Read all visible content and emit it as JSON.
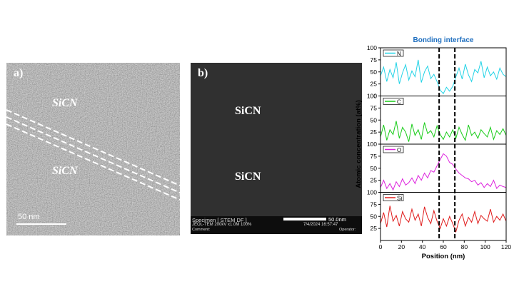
{
  "panel_a": {
    "label": "a)",
    "upper_layer": "SiCN",
    "lower_layer": "SiCN",
    "scale_bar": "50 nm"
  },
  "panel_b": {
    "label": "b)",
    "upper_layer": "SiCN",
    "lower_layer": "SiCN",
    "scale_bar": "50.0nm",
    "footer": {
      "line1_left": "Specimen [ STEM DF ]",
      "line2_left": "JEOL-TEM 200kV x1.0M 100%",
      "line2_right": "7/4/2024 16:57:47",
      "line3_left": "Comment:",
      "line3_right": "Operator:"
    }
  },
  "chart_data": {
    "type": "line",
    "title": "Bonding interface",
    "xlabel": "Position (nm)",
    "ylabel": "Atomic concentration (at%)",
    "xlim": [
      0,
      120
    ],
    "ylim": [
      0,
      100
    ],
    "xticks": [
      "0",
      "20",
      "40",
      "60",
      "80",
      "100",
      "120"
    ],
    "yticks": [
      "0",
      "25",
      "50",
      "75",
      "100"
    ],
    "interface_lines_x": [
      56,
      71
    ],
    "grid": false,
    "colors": {
      "N": "#22d3e6",
      "C": "#19cc19",
      "O": "#dd22dd",
      "Si": "#e01c1c",
      "title": "#1f6fbf"
    },
    "series": [
      {
        "name": "N",
        "x": [
          0,
          3,
          6,
          9,
          12,
          15,
          18,
          21,
          24,
          27,
          30,
          33,
          36,
          39,
          42,
          45,
          48,
          51,
          54,
          57,
          60,
          63,
          66,
          69,
          72,
          75,
          78,
          81,
          84,
          87,
          90,
          93,
          96,
          99,
          102,
          105,
          108,
          111,
          114,
          117,
          120
        ],
        "values": [
          42,
          60,
          30,
          55,
          38,
          70,
          25,
          48,
          65,
          33,
          52,
          40,
          75,
          28,
          50,
          62,
          36,
          45,
          30,
          12,
          5,
          18,
          10,
          20,
          40,
          58,
          35,
          66,
          44,
          30,
          55,
          48,
          72,
          38,
          60,
          42,
          50,
          35,
          58,
          45,
          40
        ]
      },
      {
        "name": "C",
        "x": [
          0,
          3,
          6,
          9,
          12,
          15,
          18,
          21,
          24,
          27,
          30,
          33,
          36,
          39,
          42,
          45,
          48,
          51,
          54,
          57,
          60,
          63,
          66,
          69,
          72,
          75,
          78,
          81,
          84,
          87,
          90,
          93,
          96,
          99,
          102,
          105,
          108,
          111,
          114,
          117,
          120
        ],
        "values": [
          15,
          40,
          8,
          30,
          20,
          48,
          12,
          35,
          25,
          5,
          42,
          18,
          30,
          10,
          45,
          22,
          28,
          15,
          38,
          20,
          10,
          25,
          15,
          30,
          12,
          35,
          20,
          8,
          40,
          18,
          25,
          12,
          30,
          22,
          15,
          35,
          10,
          28,
          20,
          32,
          18
        ]
      },
      {
        "name": "O",
        "x": [
          0,
          3,
          6,
          9,
          12,
          15,
          18,
          21,
          24,
          27,
          30,
          33,
          36,
          39,
          42,
          45,
          48,
          51,
          54,
          57,
          60,
          63,
          66,
          69,
          72,
          75,
          78,
          81,
          84,
          87,
          90,
          93,
          96,
          99,
          102,
          105,
          108,
          111,
          114,
          117,
          120
        ],
        "values": [
          10,
          25,
          8,
          18,
          5,
          22,
          12,
          28,
          15,
          20,
          30,
          18,
          35,
          25,
          40,
          30,
          45,
          42,
          55,
          68,
          80,
          75,
          62,
          58,
          48,
          40,
          35,
          30,
          28,
          22,
          25,
          15,
          20,
          10,
          18,
          12,
          25,
          8,
          15,
          12,
          10
        ]
      },
      {
        "name": "Si",
        "x": [
          0,
          3,
          6,
          9,
          12,
          15,
          18,
          21,
          24,
          27,
          30,
          33,
          36,
          39,
          42,
          45,
          48,
          51,
          54,
          57,
          60,
          63,
          66,
          69,
          72,
          75,
          78,
          81,
          84,
          87,
          90,
          93,
          96,
          99,
          102,
          105,
          108,
          111,
          114,
          117,
          120
        ],
        "values": [
          35,
          58,
          28,
          72,
          40,
          52,
          30,
          60,
          45,
          38,
          65,
          42,
          55,
          30,
          70,
          48,
          35,
          62,
          40,
          25,
          45,
          30,
          50,
          35,
          18,
          42,
          55,
          30,
          48,
          38,
          60,
          35,
          52,
          45,
          40,
          65,
          38,
          50,
          42,
          55,
          40
        ]
      }
    ]
  }
}
